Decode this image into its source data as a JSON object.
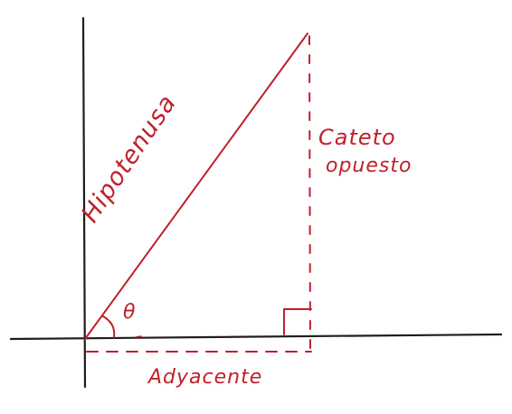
{
  "colors": {
    "axis": "#1e1e1e",
    "accent": "#c0202b",
    "background": "#ffffff"
  },
  "labels": {
    "hypotenuse": "Hipotenusa",
    "opposite_line1": "Cateto",
    "opposite_line2": "opuesto",
    "adjacent": "Adyacente",
    "angle": "θ"
  }
}
